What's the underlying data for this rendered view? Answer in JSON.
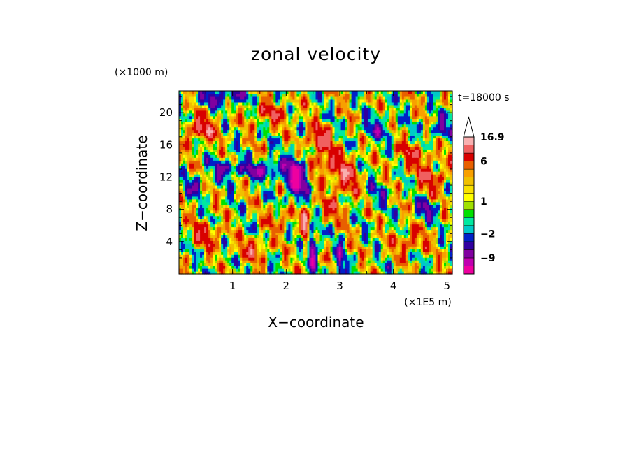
{
  "chart_data": {
    "type": "heatmap",
    "title": "zonal velocity",
    "xlabel": "X−coordinate",
    "ylabel": "Z−coordinate",
    "x_unit": "(×1E5 m)",
    "y_unit": "(×1000 m)",
    "time_label": "t=18000 s",
    "xlim": [
      0,
      5.1
    ],
    "ylim": [
      0,
      22.7
    ],
    "x_ticks": [
      {
        "value": 1,
        "label": "1"
      },
      {
        "value": 2,
        "label": "2"
      },
      {
        "value": 3,
        "label": "3"
      },
      {
        "value": 4,
        "label": "4"
      },
      {
        "value": 5,
        "label": "5"
      }
    ],
    "y_ticks": [
      {
        "value": 4,
        "label": "4"
      },
      {
        "value": 8,
        "label": "8"
      },
      {
        "value": 12,
        "label": "12"
      },
      {
        "value": 16,
        "label": "16"
      },
      {
        "value": 20,
        "label": "20"
      }
    ],
    "colorbar": {
      "levels": [
        -16,
        -12,
        -9,
        -6,
        -4,
        -2,
        -1,
        0,
        0.5,
        1,
        1.5,
        2,
        3,
        4,
        6,
        9,
        12,
        16.9
      ],
      "colors": [
        "#ee00a0",
        "#c000b0",
        "#8000a0",
        "#3000a0",
        "#0020c8",
        "#00c8c8",
        "#00e8a0",
        "#00e000",
        "#a0e000",
        "#ffff00",
        "#f8e000",
        "#f0c000",
        "#f8a000",
        "#e86000",
        "#d80000",
        "#f06060",
        "#f8b0b0"
      ],
      "labels": [
        {
          "level": 16.9,
          "text": "16.9"
        },
        {
          "level": 6,
          "text": "6"
        },
        {
          "level": 1,
          "text": "1"
        },
        {
          "level": -2,
          "text": "−2"
        },
        {
          "level": -9,
          "text": "−9"
        }
      ],
      "extend": "max"
    },
    "field_description": "Highly variable zonal wind field; yellow/orange dominant with green/cyan patches, blue/dark blue negative cores (strongest near x=2.1-2.3, z=10-14) and orange positive cores (near x=0.3-0.5, z=18; x=2.5-3.2, z=12-16)."
  }
}
